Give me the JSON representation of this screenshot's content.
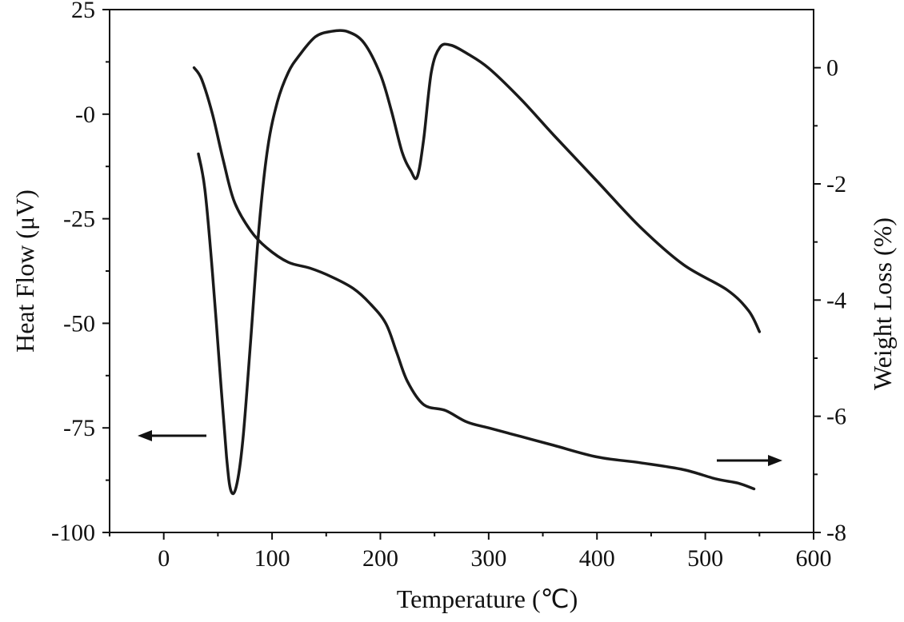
{
  "chart_data": {
    "type": "line",
    "xlabel": "Temperature (℃)",
    "ylabel_left": "Heat Flow (μV)",
    "ylabel_right": "Weight Loss (%)",
    "xlim": [
      -50,
      600
    ],
    "ylim_left": [
      -100,
      25
    ],
    "ylim_right": [
      -8,
      1
    ],
    "x_ticks": [
      0,
      100,
      200,
      300,
      400,
      500,
      600
    ],
    "x_tick_labels": [
      "0",
      "100",
      "200",
      "300",
      "400",
      "500",
      "600"
    ],
    "y_left_ticks": [
      25,
      0,
      -25,
      -50,
      -75,
      -100
    ],
    "y_left_tick_labels": [
      "25",
      "-0",
      "-25",
      "-50",
      "-75",
      "-100"
    ],
    "y_right_ticks": [
      0,
      -2,
      -4,
      -6,
      -8
    ],
    "y_right_tick_labels": [
      "0",
      "-2",
      "-4",
      "-6",
      "-8"
    ],
    "grid": false,
    "series": [
      {
        "axis": "left",
        "color": "#1a1a1a",
        "points": [
          [
            32,
            -9.5
          ],
          [
            38,
            -18
          ],
          [
            45,
            -38
          ],
          [
            52,
            -62
          ],
          [
            58,
            -82
          ],
          [
            62,
            -90
          ],
          [
            67,
            -89
          ],
          [
            73,
            -78
          ],
          [
            80,
            -55
          ],
          [
            88,
            -27
          ],
          [
            96,
            -8
          ],
          [
            105,
            3
          ],
          [
            115,
            10
          ],
          [
            125,
            14
          ],
          [
            140,
            18.5
          ],
          [
            155,
            19.8
          ],
          [
            170,
            19.7
          ],
          [
            185,
            17
          ],
          [
            200,
            9.5
          ],
          [
            210,
            1
          ],
          [
            220,
            -9
          ],
          [
            228,
            -13.5
          ],
          [
            234,
            -15
          ],
          [
            240,
            -6
          ],
          [
            247,
            10
          ],
          [
            255,
            16
          ],
          [
            265,
            16.5
          ],
          [
            280,
            14.5
          ],
          [
            300,
            11
          ],
          [
            330,
            3.5
          ],
          [
            360,
            -5
          ],
          [
            400,
            -16
          ],
          [
            440,
            -27
          ],
          [
            480,
            -36
          ],
          [
            520,
            -42
          ],
          [
            540,
            -47
          ],
          [
            550,
            -52
          ]
        ]
      },
      {
        "axis": "right",
        "color": "#1a1a1a",
        "points": [
          [
            28,
            0
          ],
          [
            35,
            -0.2
          ],
          [
            45,
            -0.8
          ],
          [
            55,
            -1.6
          ],
          [
            65,
            -2.3
          ],
          [
            80,
            -2.8
          ],
          [
            95,
            -3.1
          ],
          [
            115,
            -3.35
          ],
          [
            135,
            -3.45
          ],
          [
            155,
            -3.6
          ],
          [
            175,
            -3.8
          ],
          [
            190,
            -4.05
          ],
          [
            205,
            -4.4
          ],
          [
            215,
            -4.9
          ],
          [
            225,
            -5.4
          ],
          [
            240,
            -5.8
          ],
          [
            260,
            -5.9
          ],
          [
            280,
            -6.1
          ],
          [
            300,
            -6.2
          ],
          [
            330,
            -6.35
          ],
          [
            360,
            -6.5
          ],
          [
            400,
            -6.7
          ],
          [
            440,
            -6.8
          ],
          [
            480,
            -6.92
          ],
          [
            510,
            -7.08
          ],
          [
            530,
            -7.15
          ],
          [
            545,
            -7.25
          ]
        ]
      }
    ]
  }
}
